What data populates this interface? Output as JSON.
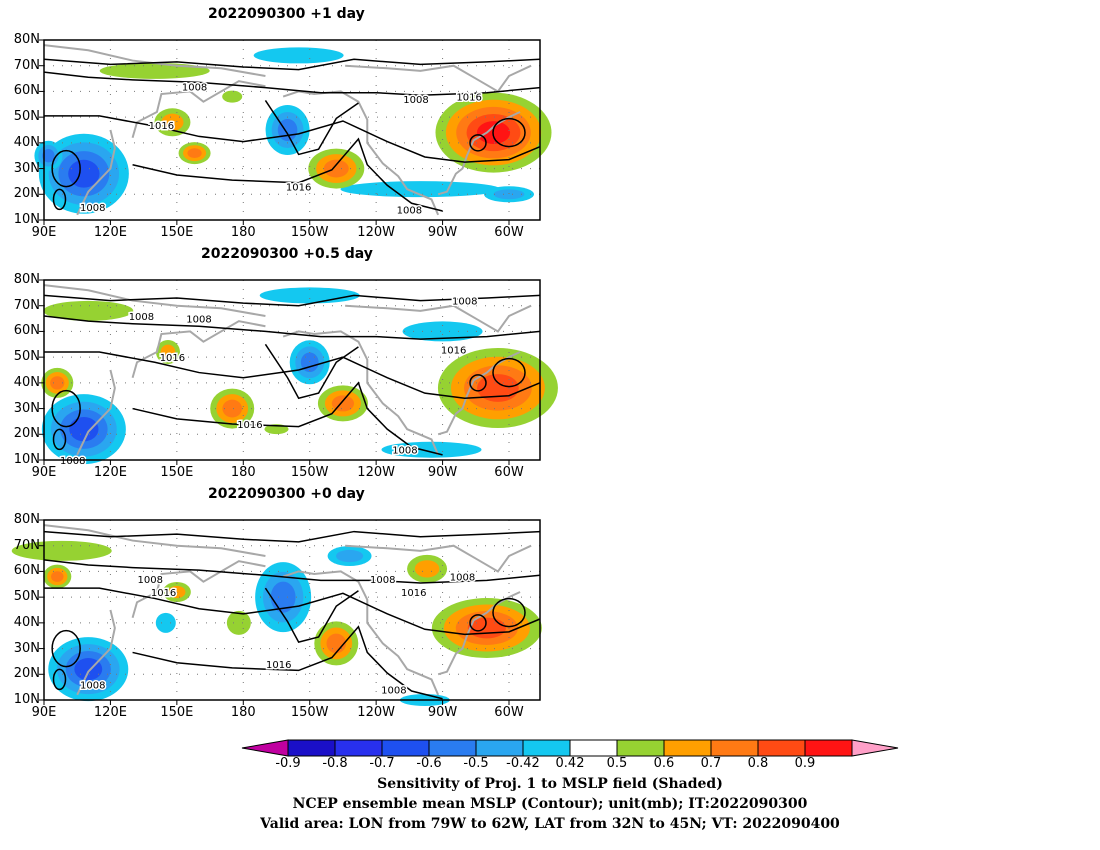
{
  "panels": [
    {
      "title": "2022090300  +1 day",
      "contour_labels": [
        {
          "text": "1008",
          "lon": 158,
          "lat": 62
        },
        {
          "text": "1016",
          "lon": 143,
          "lat": 47
        },
        {
          "text": "1008",
          "lon": 258,
          "lat": 57
        },
        {
          "text": "1016",
          "lon": 282,
          "lat": 58
        },
        {
          "text": "1016",
          "lon": 205,
          "lat": 23
        },
        {
          "text": "1008",
          "lon": 255,
          "lat": 14
        },
        {
          "text": "1008",
          "lon": 112,
          "lat": 15
        }
      ]
    },
    {
      "title": "2022090300  +0.5 day",
      "contour_labels": [
        {
          "text": "1008",
          "lon": 134,
          "lat": 66
        },
        {
          "text": "1008",
          "lon": 160,
          "lat": 65
        },
        {
          "text": "1016",
          "lon": 148,
          "lat": 50
        },
        {
          "text": "1008",
          "lon": 280,
          "lat": 72
        },
        {
          "text": "1016",
          "lon": 275,
          "lat": 53
        },
        {
          "text": "1016",
          "lon": 183,
          "lat": 24
        },
        {
          "text": "1008",
          "lon": 253,
          "lat": 14
        },
        {
          "text": "1008",
          "lon": 103,
          "lat": 10
        }
      ]
    },
    {
      "title": "2022090300  +0 day",
      "contour_labels": [
        {
          "text": "1008",
          "lon": 138,
          "lat": 57
        },
        {
          "text": "1016",
          "lon": 144,
          "lat": 52
        },
        {
          "text": "1008",
          "lon": 243,
          "lat": 57
        },
        {
          "text": "1008",
          "lon": 279,
          "lat": 58
        },
        {
          "text": "1016",
          "lon": 257,
          "lat": 52
        },
        {
          "text": "1016",
          "lon": 196,
          "lat": 24
        },
        {
          "text": "1008",
          "lon": 248,
          "lat": 14
        },
        {
          "text": "1008",
          "lon": 112,
          "lat": 16
        }
      ]
    }
  ],
  "axes": {
    "lat_ticks": [
      "80N",
      "70N",
      "60N",
      "50N",
      "40N",
      "30N",
      "20N",
      "10N"
    ],
    "lon_ticks": [
      "90E",
      "120E",
      "150E",
      "180",
      "150W",
      "120W",
      "90W",
      "60W"
    ],
    "lon_range": [
      90,
      314
    ],
    "lat_range": [
      10,
      80
    ]
  },
  "colorbar": {
    "labels": [
      "-0.9",
      "-0.8",
      "-0.7",
      "-0.6",
      "-0.5",
      "-0.42",
      "0.42",
      "0.5",
      "0.6",
      "0.7",
      "0.8",
      "0.9"
    ],
    "colors": [
      "#c000a0",
      "#1a0fc8",
      "#2830ee",
      "#1e50f0",
      "#2a7cf0",
      "#2aa6f0",
      "#14c8f0",
      "#ffffff",
      "#96d232",
      "#ff9f00",
      "#ff7a14",
      "#ff4b14",
      "#ff1414",
      "#ffa0c8"
    ]
  },
  "caption": {
    "line1": "Sensitivity of Proj. 1 to MSLP field (Shaded)",
    "line2": "NCEP ensemble mean MSLP (Contour); unit(mb); IT:2022090300",
    "line3": "Valid area: LON from 79W to 62W, LAT from 32N to 45N; VT: 2022090400"
  }
}
